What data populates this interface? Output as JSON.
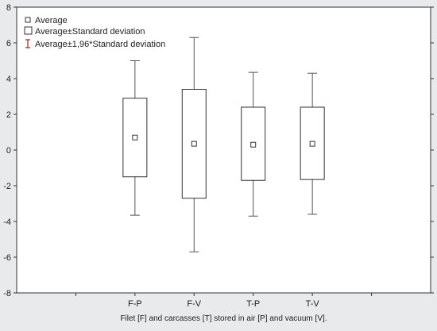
{
  "chart_data": {
    "type": "boxplot",
    "categories": [
      "F-P",
      "F-V",
      "T-P",
      "T-V"
    ],
    "series": [
      {
        "name": "Average",
        "values": [
          0.7,
          0.35,
          0.3,
          0.35
        ]
      },
      {
        "name": "Average±Standard deviation",
        "values": [
          [
            -1.5,
            2.9
          ],
          [
            -2.7,
            3.4
          ],
          [
            -1.7,
            2.4
          ],
          [
            -1.65,
            2.4
          ]
        ]
      },
      {
        "name": "Average±1,96*Standard deviation",
        "values": [
          [
            -3.65,
            5.0
          ],
          [
            -5.7,
            6.3
          ],
          [
            -3.7,
            4.35
          ],
          [
            -3.6,
            4.3
          ]
        ]
      }
    ],
    "yticks": [
      -8,
      -6,
      -4,
      -2,
      0,
      2,
      4,
      6,
      8
    ],
    "ylim": [
      -8,
      8
    ],
    "xlabel": "Filet [F] and carcasses [T] stored in air [P] and vacuum [V].",
    "ylabel": "",
    "legend": {
      "position": "top-left",
      "entries": [
        "Average",
        "Average±Standard deviation",
        "Average±1,96*Standard deviation"
      ]
    },
    "grid": false
  },
  "colors": {
    "background": "#e9eaec",
    "plot_background": "#ffffff",
    "axis": "#333333",
    "box_fill": "#ffffff",
    "box_stroke": "#333333",
    "whisker": "#555555",
    "legend_whisker": "#b01818"
  }
}
